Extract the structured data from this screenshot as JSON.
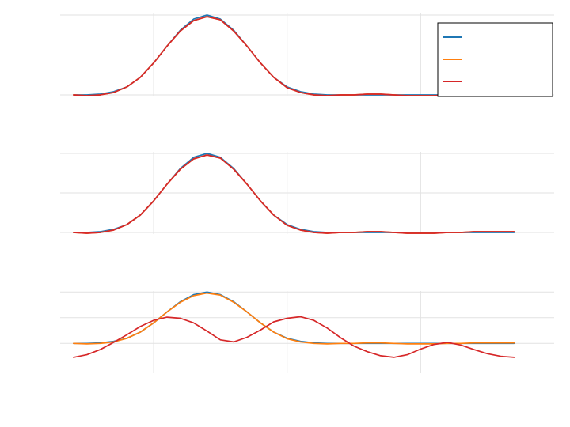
{
  "chart_data": [
    {
      "type": "line",
      "xlim": [
        -1,
        36
      ],
      "ylim": [
        -0.02,
        1.02
      ],
      "x_grid": [
        6,
        16,
        26
      ],
      "y_grid": [
        0,
        0.5,
        1
      ],
      "grid": true,
      "legend": {
        "position": "top-right",
        "entries": [
          {
            "name": "",
            "color": "#1f77b4"
          },
          {
            "name": "",
            "color": "#ff7f0e"
          },
          {
            "name": "",
            "color": "#d62728"
          }
        ]
      },
      "series": [
        {
          "color": "#1f77b4",
          "x": [
            0,
            1,
            2,
            3,
            4,
            5,
            6,
            7,
            8,
            9,
            10,
            11,
            12,
            13,
            14,
            15,
            16,
            17,
            18,
            19,
            20,
            21,
            22,
            23,
            24,
            25,
            26,
            27,
            28,
            29,
            30,
            31,
            32,
            33
          ],
          "y": [
            0.0,
            0.0,
            0.01,
            0.04,
            0.1,
            0.22,
            0.4,
            0.61,
            0.81,
            0.95,
            1.0,
            0.95,
            0.81,
            0.61,
            0.4,
            0.22,
            0.1,
            0.04,
            0.01,
            0.0,
            0.0,
            0.0,
            0.0,
            0.0,
            0.0,
            0.0,
            0.0,
            0.0,
            0.0,
            0.0,
            0.0,
            0.0,
            0.0,
            0.0
          ]
        },
        {
          "color": "#ff7f0e",
          "x": [
            0,
            1,
            2,
            3,
            4,
            5,
            6,
            7,
            8,
            9,
            10,
            11,
            12,
            13,
            14,
            15,
            16,
            17,
            18,
            19,
            20,
            21,
            22,
            23,
            24,
            25,
            26,
            27,
            28,
            29,
            30,
            31,
            32,
            33
          ],
          "y": [
            0.0,
            -0.01,
            0.0,
            0.03,
            0.1,
            0.22,
            0.4,
            0.61,
            0.8,
            0.93,
            0.98,
            0.94,
            0.8,
            0.61,
            0.4,
            0.22,
            0.09,
            0.03,
            0.0,
            -0.01,
            0.0,
            0.0,
            0.01,
            0.01,
            0.0,
            -0.01,
            -0.01,
            -0.01,
            0.0,
            0.0,
            0.01,
            0.01,
            0.01,
            0.01
          ]
        },
        {
          "color": "#d62728",
          "x": [
            0,
            1,
            2,
            3,
            4,
            5,
            6,
            7,
            8,
            9,
            10,
            11,
            12,
            13,
            14,
            15,
            16,
            17,
            18,
            19,
            20,
            21,
            22,
            23,
            24,
            25,
            26,
            27,
            28,
            29,
            30,
            31,
            32,
            33
          ],
          "y": [
            0.0,
            -0.01,
            0.0,
            0.03,
            0.1,
            0.22,
            0.4,
            0.61,
            0.8,
            0.93,
            0.98,
            0.94,
            0.8,
            0.61,
            0.4,
            0.22,
            0.09,
            0.03,
            0.0,
            -0.01,
            0.0,
            0.0,
            0.01,
            0.01,
            0.0,
            -0.01,
            -0.01,
            -0.01,
            0.0,
            0.0,
            0.01,
            0.01,
            0.01,
            0.01
          ]
        }
      ]
    },
    {
      "type": "line",
      "xlim": [
        -1,
        36
      ],
      "ylim": [
        -0.02,
        1.02
      ],
      "x_grid": [
        6,
        16,
        26
      ],
      "y_grid": [
        0,
        0.5,
        1
      ],
      "grid": true,
      "series": [
        {
          "color": "#1f77b4",
          "x": [
            0,
            1,
            2,
            3,
            4,
            5,
            6,
            7,
            8,
            9,
            10,
            11,
            12,
            13,
            14,
            15,
            16,
            17,
            18,
            19,
            20,
            21,
            22,
            23,
            24,
            25,
            26,
            27,
            28,
            29,
            30,
            31,
            32,
            33
          ],
          "y": [
            0.0,
            0.0,
            0.01,
            0.04,
            0.1,
            0.22,
            0.4,
            0.61,
            0.81,
            0.95,
            1.0,
            0.95,
            0.81,
            0.61,
            0.4,
            0.22,
            0.1,
            0.04,
            0.01,
            0.0,
            0.0,
            0.0,
            0.0,
            0.0,
            0.0,
            0.0,
            0.0,
            0.0,
            0.0,
            0.0,
            0.0,
            0.0,
            0.0,
            0.0
          ]
        },
        {
          "color": "#ff7f0e",
          "x": [
            0,
            1,
            2,
            3,
            4,
            5,
            6,
            7,
            8,
            9,
            10,
            11,
            12,
            13,
            14,
            15,
            16,
            17,
            18,
            19,
            20,
            21,
            22,
            23,
            24,
            25,
            26,
            27,
            28,
            29,
            30,
            31,
            32,
            33
          ],
          "y": [
            0.0,
            -0.01,
            0.0,
            0.03,
            0.1,
            0.22,
            0.4,
            0.61,
            0.8,
            0.93,
            0.98,
            0.94,
            0.8,
            0.61,
            0.4,
            0.22,
            0.09,
            0.03,
            0.0,
            -0.01,
            0.0,
            0.0,
            0.01,
            0.01,
            0.0,
            -0.01,
            -0.01,
            -0.01,
            0.0,
            0.0,
            0.01,
            0.01,
            0.01,
            0.01
          ]
        },
        {
          "color": "#d62728",
          "x": [
            0,
            1,
            2,
            3,
            4,
            5,
            6,
            7,
            8,
            9,
            10,
            11,
            12,
            13,
            14,
            15,
            16,
            17,
            18,
            19,
            20,
            21,
            22,
            23,
            24,
            25,
            26,
            27,
            28,
            29,
            30,
            31,
            32,
            33
          ],
          "y": [
            0.0,
            -0.01,
            0.0,
            0.03,
            0.1,
            0.22,
            0.4,
            0.61,
            0.8,
            0.93,
            0.98,
            0.94,
            0.8,
            0.61,
            0.4,
            0.22,
            0.09,
            0.03,
            0.0,
            -0.01,
            0.0,
            0.0,
            0.01,
            0.01,
            0.0,
            -0.01,
            -0.01,
            -0.01,
            0.0,
            0.0,
            0.01,
            0.01,
            0.01,
            0.01
          ]
        }
      ]
    },
    {
      "type": "line",
      "xlim": [
        -1,
        36
      ],
      "ylim": [
        -0.58,
        1.02
      ],
      "x_grid": [
        6,
        16,
        26
      ],
      "y_grid": [
        0,
        0.5,
        1
      ],
      "grid": true,
      "series": [
        {
          "color": "#1f77b4",
          "x": [
            0,
            1,
            2,
            3,
            4,
            5,
            6,
            7,
            8,
            9,
            10,
            11,
            12,
            13,
            14,
            15,
            16,
            17,
            18,
            19,
            20,
            21,
            22,
            23,
            24,
            25,
            26,
            27,
            28,
            29,
            30,
            31,
            32,
            33
          ],
          "y": [
            0.0,
            0.0,
            0.01,
            0.04,
            0.1,
            0.22,
            0.4,
            0.61,
            0.81,
            0.95,
            1.0,
            0.95,
            0.81,
            0.61,
            0.4,
            0.22,
            0.1,
            0.04,
            0.01,
            0.0,
            0.0,
            0.0,
            0.0,
            0.0,
            0.0,
            0.0,
            0.0,
            0.0,
            0.0,
            0.0,
            0.0,
            0.0,
            0.0,
            0.0
          ]
        },
        {
          "color": "#ff7f0e",
          "x": [
            0,
            1,
            2,
            3,
            4,
            5,
            6,
            7,
            8,
            9,
            10,
            11,
            12,
            13,
            14,
            15,
            16,
            17,
            18,
            19,
            20,
            21,
            22,
            23,
            24,
            25,
            26,
            27,
            28,
            29,
            30,
            31,
            32,
            33
          ],
          "y": [
            0.0,
            -0.01,
            0.0,
            0.03,
            0.1,
            0.22,
            0.4,
            0.61,
            0.8,
            0.93,
            0.98,
            0.94,
            0.8,
            0.61,
            0.4,
            0.22,
            0.09,
            0.03,
            0.0,
            -0.01,
            0.0,
            0.0,
            0.01,
            0.01,
            0.0,
            -0.01,
            -0.01,
            -0.01,
            0.0,
            0.0,
            0.01,
            0.01,
            0.01,
            0.01
          ]
        },
        {
          "color": "#d62728",
          "x": [
            0,
            1,
            2,
            3,
            4,
            5,
            6,
            7,
            8,
            9,
            10,
            11,
            12,
            13,
            14,
            15,
            16,
            17,
            18,
            19,
            20,
            21,
            22,
            23,
            24,
            25,
            26,
            27,
            28,
            29,
            30,
            31,
            32,
            33
          ],
          "y": [
            -0.27,
            -0.22,
            -0.12,
            0.02,
            0.17,
            0.33,
            0.45,
            0.51,
            0.49,
            0.4,
            0.24,
            0.07,
            0.03,
            0.12,
            0.26,
            0.42,
            0.49,
            0.52,
            0.45,
            0.3,
            0.11,
            -0.05,
            -0.16,
            -0.24,
            -0.27,
            -0.22,
            -0.11,
            -0.02,
            0.02,
            -0.03,
            -0.12,
            -0.2,
            -0.25,
            -0.27
          ]
        }
      ]
    }
  ]
}
